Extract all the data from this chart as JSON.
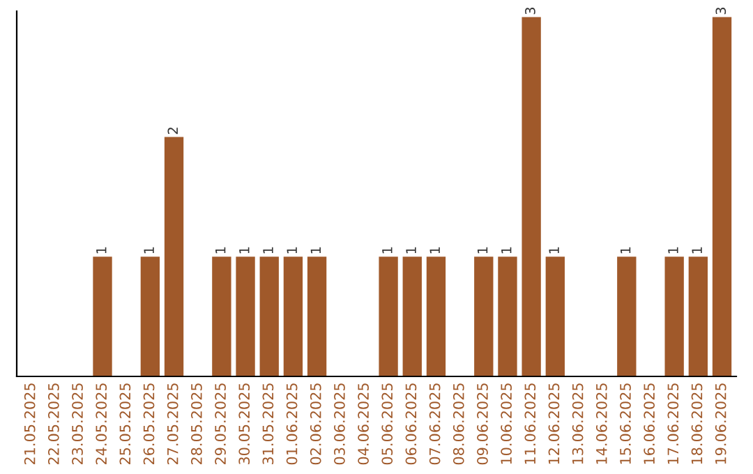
{
  "chart_data": {
    "type": "bar",
    "categories": [
      "21.05.2025",
      "22.05.2025",
      "23.05.2025",
      "24.05.2025",
      "25.05.2025",
      "26.05.2025",
      "27.05.2025",
      "28.05.2025",
      "29.05.2025",
      "30.05.2025",
      "31.05.2025",
      "01.06.2025",
      "02.06.2025",
      "03.06.2025",
      "04.06.2025",
      "05.06.2025",
      "06.06.2025",
      "07.06.2025",
      "08.06.2025",
      "09.06.2025",
      "10.06.2025",
      "11.06.2025",
      "12.06.2025",
      "13.06.2025",
      "14.06.2025",
      "15.06.2025",
      "16.06.2025",
      "17.06.2025",
      "18.06.2025",
      "19.06.2025"
    ],
    "values": [
      0,
      0,
      0,
      1,
      0,
      1,
      2,
      0,
      1,
      1,
      1,
      1,
      1,
      0,
      0,
      1,
      1,
      1,
      0,
      1,
      1,
      3,
      1,
      0,
      0,
      1,
      0,
      1,
      1,
      3
    ],
    "value_labels": [
      null,
      null,
      null,
      "1",
      null,
      "1",
      "2",
      null,
      "1",
      "1",
      "1",
      "1",
      "1",
      null,
      null,
      "1",
      "1",
      "1",
      null,
      "1",
      "1",
      "3",
      "1",
      null,
      null,
      "1",
      null,
      "1",
      "1",
      "3"
    ],
    "color": "#a0592a",
    "ylim": [
      0,
      3.05
    ],
    "tick_labels": "x",
    "grid": false,
    "legend": false
  }
}
